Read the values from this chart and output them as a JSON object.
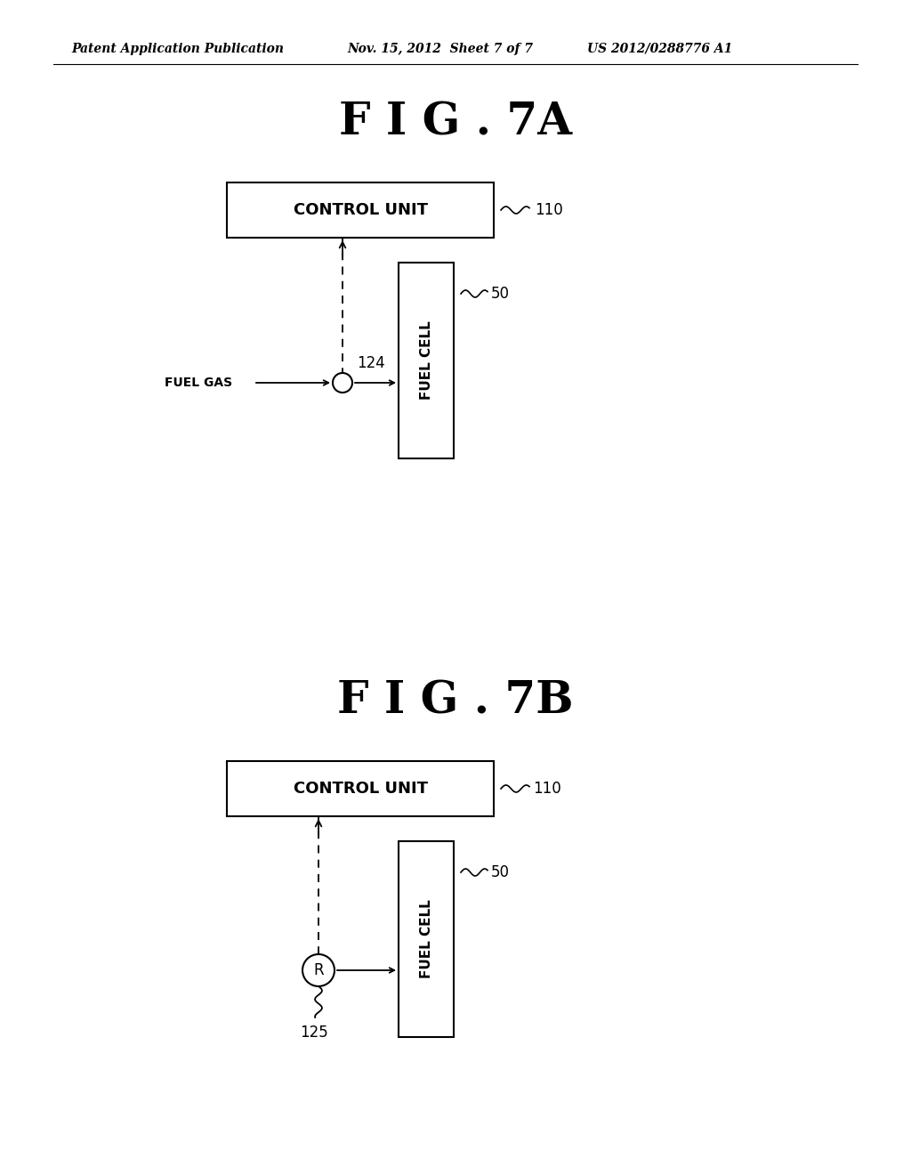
{
  "bg_color": "#ffffff",
  "header_left": "Patent Application Publication",
  "header_mid": "Nov. 15, 2012  Sheet 7 of 7",
  "header_right": "US 2012/0288776 A1",
  "fig7a_title": "F I G . 7A",
  "fig7b_title": "F I G . 7B",
  "control_unit_label": "CONTROL UNIT",
  "fuel_cell_label": "FUEL CELL",
  "fuel_gas_label": "FUEL GAS",
  "label_110_a": "110",
  "label_50_a": "50",
  "label_124": "124",
  "label_110_b": "110",
  "label_50_b": "50",
  "label_125": "125",
  "label_R": "R",
  "line_color": "#000000",
  "text_color": "#000000",
  "header_fontsize": 10,
  "title_fontsize": 36,
  "body_fontsize": 11,
  "label_fontsize": 12,
  "cu_fontsize": 13,
  "fc_fontsize": 11
}
